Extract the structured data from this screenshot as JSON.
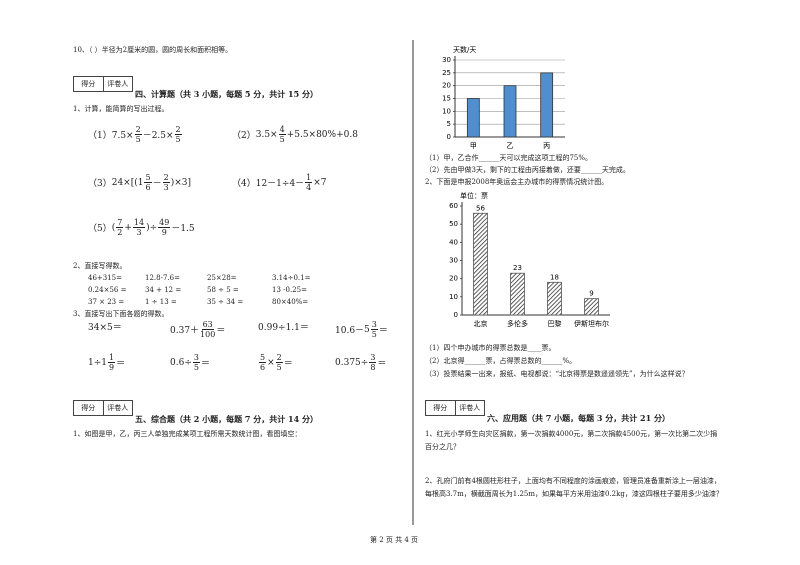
{
  "left": {
    "q10": "10、（    ）半径为2厘米的圆，圆的周长和面积相等。",
    "sec4": {
      "score": "得分",
      "grader": "评卷人",
      "title": "四、计算题（共 3 小题，每题 5 分，共计 15 分）",
      "q1": {
        "prompt": "1、计算，能简算的写出过程。",
        "items": [
          [
            "（1）7.5×",
            {
              "n": "2",
              "d": "5"
            },
            "－2.5×",
            {
              "n": "2",
              "d": "5"
            }
          ],
          [
            "（2）",
            "3.5×",
            {
              "n": "4",
              "d": "5"
            },
            "+5.5×80%+0.8"
          ],
          [
            "（3）",
            "24×[(",
            {
              "w": "1",
              "n": "5",
              "d": "6"
            },
            "－",
            {
              "n": "2",
              "d": "3"
            },
            ")×3]"
          ],
          [
            "（4）12－1÷4－",
            {
              "n": "1",
              "d": "4"
            },
            "×7"
          ],
          [
            "（5）",
            "(",
            {
              "n": "7",
              "d": "2"
            },
            "+",
            {
              "n": "14",
              "d": "3"
            },
            ")÷",
            {
              "n": "49",
              "d": "9"
            },
            "－1.5"
          ]
        ]
      },
      "q2": {
        "prompt": "2、直接写得数。",
        "rows": [
          [
            "46+315=",
            "12.8-7.6=",
            "25×28=",
            "3.14÷0.1="
          ],
          [
            "0.24×56 =",
            "34 + 12 =",
            "58 ÷ 5 =",
            "13 -0.25="
          ],
          [
            "37 × 23 =",
            "1 ÷ 13 =",
            "35 ÷ 34 =",
            "80×40%="
          ]
        ]
      },
      "q3": {
        "prompt": "3、直接写出下面各题的得数。",
        "rows": [
          [
            [
              "34×5＝"
            ],
            [
              "0.37＋",
              {
                "n": "63",
                "d": "100"
              },
              "＝"
            ],
            [
              "0.99÷1.1＝"
            ],
            [
              "10.6－",
              {
                "w": "5",
                "n": "3",
                "d": "5"
              },
              "＝"
            ]
          ],
          [
            [
              "1÷",
              {
                "w": "1",
                "n": "1",
                "d": "9"
              },
              "＝"
            ],
            [
              "0.6÷",
              {
                "n": "3",
                "d": "5"
              },
              "＝"
            ],
            [
              {
                "n": "5",
                "d": "6"
              },
              "×",
              {
                "n": "2",
                "d": "5"
              },
              "＝"
            ],
            [
              "0.375÷",
              {
                "n": "3",
                "d": "8"
              },
              "＝"
            ]
          ]
        ]
      }
    },
    "sec5": {
      "score": "得分",
      "grader": "评卷人",
      "title": "五、综合题（共 2 小题，每题 7 分，共计 14 分）",
      "q1": "1、如图是甲，乙，丙三人单独完成某项工程所需天数统计图，看图填空："
    }
  },
  "right": {
    "chart1": {
      "type": "bar",
      "y_label": "天数/天",
      "categories": [
        "甲",
        "乙",
        "丙"
      ],
      "values": [
        15,
        20,
        25
      ],
      "ylim": [
        0,
        30
      ],
      "yticks": [
        0,
        5,
        10,
        15,
        20,
        25,
        30
      ],
      "color": "#4f8fd0"
    },
    "q1_1": "（1）甲，乙合作______天可以完成这项工程的75%。",
    "q1_2": "（2）先由甲做3天，剩下的工程由丙接着做，还要______天完成。",
    "q2": "2、下面是申报2008年奥运会主办城市的得票情况统计图。",
    "chart2": {
      "type": "bar",
      "y_label": "单位：票",
      "categories": [
        "北京",
        "多伦多",
        "巴黎",
        "伊斯坦布尔"
      ],
      "values": [
        56,
        23,
        18,
        9
      ],
      "ylim": [
        0,
        60
      ],
      "yticks": [
        0,
        10,
        20,
        30,
        40,
        50,
        60
      ],
      "color": "#555555"
    },
    "q2_1": "（1）四个申办城市的得票总数是____票。",
    "q2_2": "（2）北京得______票，占得票总数的______%。",
    "q2_3": "（3）投票结果一出来，报纸、电视都说：“北京得票是数遥遥领先”，为什么这样说？",
    "sec6": {
      "score": "得分",
      "grader": "评卷人",
      "title": "六、应用题（共 7 小题，每题 3 分，共计 21 分）",
      "q1": [
        "1、红光小学师生向灾区捐款，第一次捐款4000元，第二次捐款4500元，第一次比第二次少捐",
        "百分之几？"
      ],
      "q2": [
        "2、孔府门前有4根圆柱形柱子，上面均有不同程度的涂画痕迹，管理员准备重新涂上一层油漆，",
        "每根高3.7m，横截面周长为1.25m，如果每平方米用油漆0.2kg，漆这四根柱子要用多少油漆？"
      ]
    }
  },
  "footer": "第 2 页 共 4 页"
}
